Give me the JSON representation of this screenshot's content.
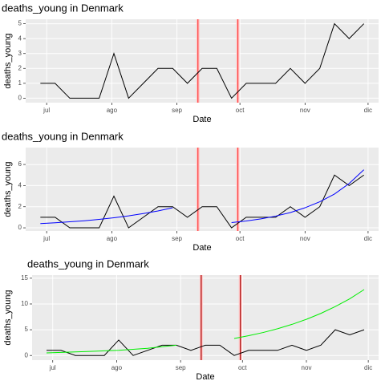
{
  "chart_data": [
    {
      "type": "line",
      "title": "deaths_young in Denmark",
      "xlabel": "Date",
      "ylabel": "deaths_young",
      "x": [
        -3,
        4,
        11,
        18,
        25,
        32,
        39,
        46,
        53,
        60,
        67,
        74,
        81,
        88,
        95,
        102,
        109,
        116,
        123,
        130,
        137,
        144,
        151
      ],
      "series": [
        {
          "color": "#000000",
          "values": [
            1,
            1,
            0,
            0,
            0,
            3,
            0,
            1,
            2,
            2,
            1,
            2,
            2,
            0,
            1,
            1,
            1,
            2,
            1,
            2,
            5,
            4,
            5
          ]
        }
      ],
      "xlim": [
        -10,
        158
      ],
      "ylim": [
        -0.3,
        5.3
      ],
      "xticks": [
        {
          "value": 0,
          "label": "jul"
        },
        {
          "value": 31,
          "label": "ago"
        },
        {
          "value": 62,
          "label": "sep"
        },
        {
          "value": 92,
          "label": "oct"
        },
        {
          "value": 123,
          "label": "nov"
        },
        {
          "value": 153,
          "label": "dic"
        }
      ],
      "yticks": [
        0,
        1,
        2,
        3,
        4,
        5
      ],
      "vlines": [
        72,
        91
      ],
      "vline_color": "#ff3b3b",
      "grid": true
    },
    {
      "type": "line",
      "title": "deaths_young in Denmark",
      "xlabel": "Date",
      "ylabel": "deaths_young",
      "x": [
        -3,
        4,
        11,
        18,
        25,
        32,
        39,
        46,
        53,
        60,
        67,
        74,
        81,
        88,
        95,
        102,
        109,
        116,
        123,
        130,
        137,
        144,
        151
      ],
      "series": [
        {
          "color": "#000000",
          "values": [
            1,
            1,
            0,
            0,
            0,
            3,
            0,
            1,
            2,
            2,
            1,
            2,
            2,
            0,
            1,
            1,
            1,
            2,
            1,
            2,
            5,
            4,
            5
          ]
        },
        {
          "color": "#0000ff",
          "values": [
            0.4,
            0.48,
            0.57,
            0.67,
            0.8,
            0.95,
            1.13,
            1.35,
            1.6,
            1.9,
            null,
            null,
            null,
            0.5,
            0.65,
            0.85,
            1.11,
            1.45,
            1.9,
            2.47,
            3.2,
            4.2,
            5.5
          ]
        }
      ],
      "xlim": [
        -10,
        158
      ],
      "ylim": [
        -0.3,
        7.6
      ],
      "xticks": [
        {
          "value": 0,
          "label": "jul"
        },
        {
          "value": 31,
          "label": "ago"
        },
        {
          "value": 62,
          "label": "sep"
        },
        {
          "value": 92,
          "label": "oct"
        },
        {
          "value": 123,
          "label": "nov"
        },
        {
          "value": 153,
          "label": "dic"
        }
      ],
      "yticks": [
        0,
        2,
        4,
        6
      ],
      "vlines": [
        72,
        91
      ],
      "vline_color": "#ff3b3b",
      "grid": true
    },
    {
      "type": "line",
      "title": "deaths_young in Denmark",
      "xlabel": "Date",
      "ylabel": "deaths_young",
      "x": [
        -3,
        4,
        11,
        18,
        25,
        32,
        39,
        46,
        53,
        60,
        67,
        74,
        81,
        88,
        95,
        102,
        109,
        116,
        123,
        130,
        137,
        144,
        151
      ],
      "series": [
        {
          "color": "#000000",
          "values": [
            1,
            1,
            0,
            0,
            0,
            3,
            0,
            1,
            2,
            2,
            1,
            2,
            2,
            0,
            1,
            1,
            1,
            2,
            1,
            2,
            5,
            4,
            5
          ]
        },
        {
          "color": "#00ee00",
          "values": [
            0.5,
            0.6,
            0.7,
            0.8,
            0.9,
            1.0,
            1.2,
            1.4,
            1.7,
            2.0,
            null,
            null,
            null,
            3.3,
            3.84,
            4.46,
            5.19,
            6.04,
            7.02,
            8.17,
            9.5,
            11.0,
            12.8
          ]
        }
      ],
      "xlim": [
        -10,
        158
      ],
      "ylim": [
        -0.9,
        15.6
      ],
      "xticks": [
        {
          "value": 0,
          "label": "jul"
        },
        {
          "value": 31,
          "label": "ago"
        },
        {
          "value": 62,
          "label": "sep"
        },
        {
          "value": 92,
          "label": "oct"
        },
        {
          "value": 123,
          "label": "nov"
        },
        {
          "value": 153,
          "label": "dic"
        }
      ],
      "yticks": [
        0,
        5,
        10,
        15
      ],
      "vlines": [
        72,
        91
      ],
      "vline_color": "#aa0000",
      "grid": true
    }
  ]
}
